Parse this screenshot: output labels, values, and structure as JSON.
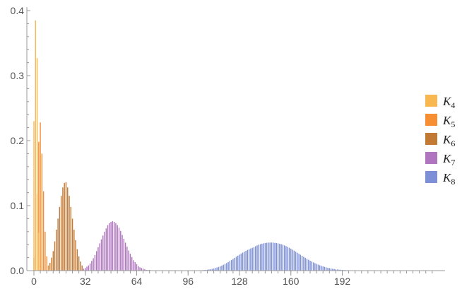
{
  "chart_data": {
    "type": "bar",
    "xlabel": "",
    "ylabel": "",
    "xlim": [
      0,
      256
    ],
    "ylim": [
      0,
      0.4
    ],
    "x_ticks": [
      "0",
      "32",
      "64",
      "96",
      "128",
      "160",
      "192"
    ],
    "y_ticks": [
      "0.0",
      "0.1",
      "0.2",
      "0.3",
      "0.4"
    ],
    "legend_position": "right",
    "series": [
      {
        "name": "K4",
        "base": "K",
        "sub": "4",
        "color": "#F9B84F",
        "x_start": 0,
        "values": [
          0.23,
          0.385,
          0.327,
          0.058
        ]
      },
      {
        "name": "K5",
        "base": "K",
        "sub": "5",
        "color": "#F78E31",
        "x_start": 0,
        "values": [
          0.02,
          0.05,
          0.118,
          0.198,
          0.228,
          0.18,
          0.122,
          0.06,
          0.022,
          0.008,
          0.002
        ]
      },
      {
        "name": "K6",
        "base": "K",
        "sub": "6",
        "color": "#C17934",
        "x_start": 10,
        "values": [
          0.012,
          0.02,
          0.03,
          0.045,
          0.063,
          0.08,
          0.098,
          0.115,
          0.128,
          0.135,
          0.136,
          0.128,
          0.115,
          0.098,
          0.08,
          0.063,
          0.047,
          0.033,
          0.022,
          0.014,
          0.008
        ]
      },
      {
        "name": "K7",
        "base": "K",
        "sub": "7",
        "color": "#AF76BF",
        "x_start": 30,
        "values": [
          0.002,
          0.003,
          0.004,
          0.006,
          0.008,
          0.011,
          0.015,
          0.019,
          0.024,
          0.03,
          0.036,
          0.042,
          0.048,
          0.054,
          0.06,
          0.065,
          0.07,
          0.073,
          0.075,
          0.076,
          0.075,
          0.073,
          0.07,
          0.066,
          0.061,
          0.055,
          0.049,
          0.043,
          0.037,
          0.031,
          0.026,
          0.021,
          0.016,
          0.013,
          0.01,
          0.007,
          0.005,
          0.004,
          0.003,
          0.002,
          0.001,
          0.001,
          0.001,
          0.0005,
          0.0005,
          0.0005,
          0.0005
        ]
      },
      {
        "name": "K8",
        "base": "K",
        "sub": "8",
        "color": "#7D8FD6",
        "x_start": 104,
        "values": [
          0.0005,
          0.0007,
          0.0009,
          0.0011,
          0.0014,
          0.0018,
          0.0022,
          0.0027,
          0.0033,
          0.004,
          0.0048,
          0.0057,
          0.0067,
          0.0078,
          0.009,
          0.0103,
          0.0117,
          0.0132,
          0.0148,
          0.0164,
          0.018,
          0.0197,
          0.0214,
          0.023,
          0.0246,
          0.0262,
          0.0277,
          0.0291,
          0.0305,
          0.0318,
          0.033,
          0.0341,
          0.0351,
          0.036,
          0.0375,
          0.0388,
          0.0398,
          0.0407,
          0.0414,
          0.042,
          0.0425,
          0.0428,
          0.0431,
          0.0432,
          0.0432,
          0.043,
          0.0428,
          0.0424,
          0.042,
          0.0414,
          0.0407,
          0.0398,
          0.0388,
          0.0377,
          0.0365,
          0.0352,
          0.0338,
          0.0323,
          0.0308,
          0.0292,
          0.0276,
          0.026,
          0.0244,
          0.0228,
          0.0212,
          0.0197,
          0.0182,
          0.0167,
          0.0153,
          0.014,
          0.0127,
          0.0115,
          0.0104,
          0.0093,
          0.0083,
          0.0074,
          0.0065,
          0.0057,
          0.005,
          0.0044,
          0.0038,
          0.0033,
          0.0028,
          0.0024,
          0.002,
          0.0017,
          0.0015,
          0.0013,
          0.0011,
          0.0009,
          0.0008,
          0.0007,
          0.0006,
          0.0005,
          0.0004,
          0.0004,
          0.0003,
          0.0003,
          0.0002,
          0.0002,
          0.0002,
          0.0001,
          0.0001,
          0.0001,
          0.0001,
          0.0001,
          0.0001,
          0.0001,
          0.0001,
          0.0001,
          0.0001,
          0.0001,
          0.0001,
          0.0001,
          0.0001,
          0.0001,
          0.0001,
          0.0001,
          0.0001,
          0.0001,
          0.0001,
          0.0001,
          0.0001,
          0.0001,
          0.0001,
          0.0001,
          0.0001,
          0.0001,
          0.0001,
          0.0001,
          0.0001,
          0.0001,
          0.0001,
          0.0001,
          0.0001,
          0.0001,
          0.0001,
          0.0001,
          0.0001,
          0.0001,
          0.0001,
          0.0001,
          0.0001,
          0.0001
        ]
      }
    ]
  }
}
